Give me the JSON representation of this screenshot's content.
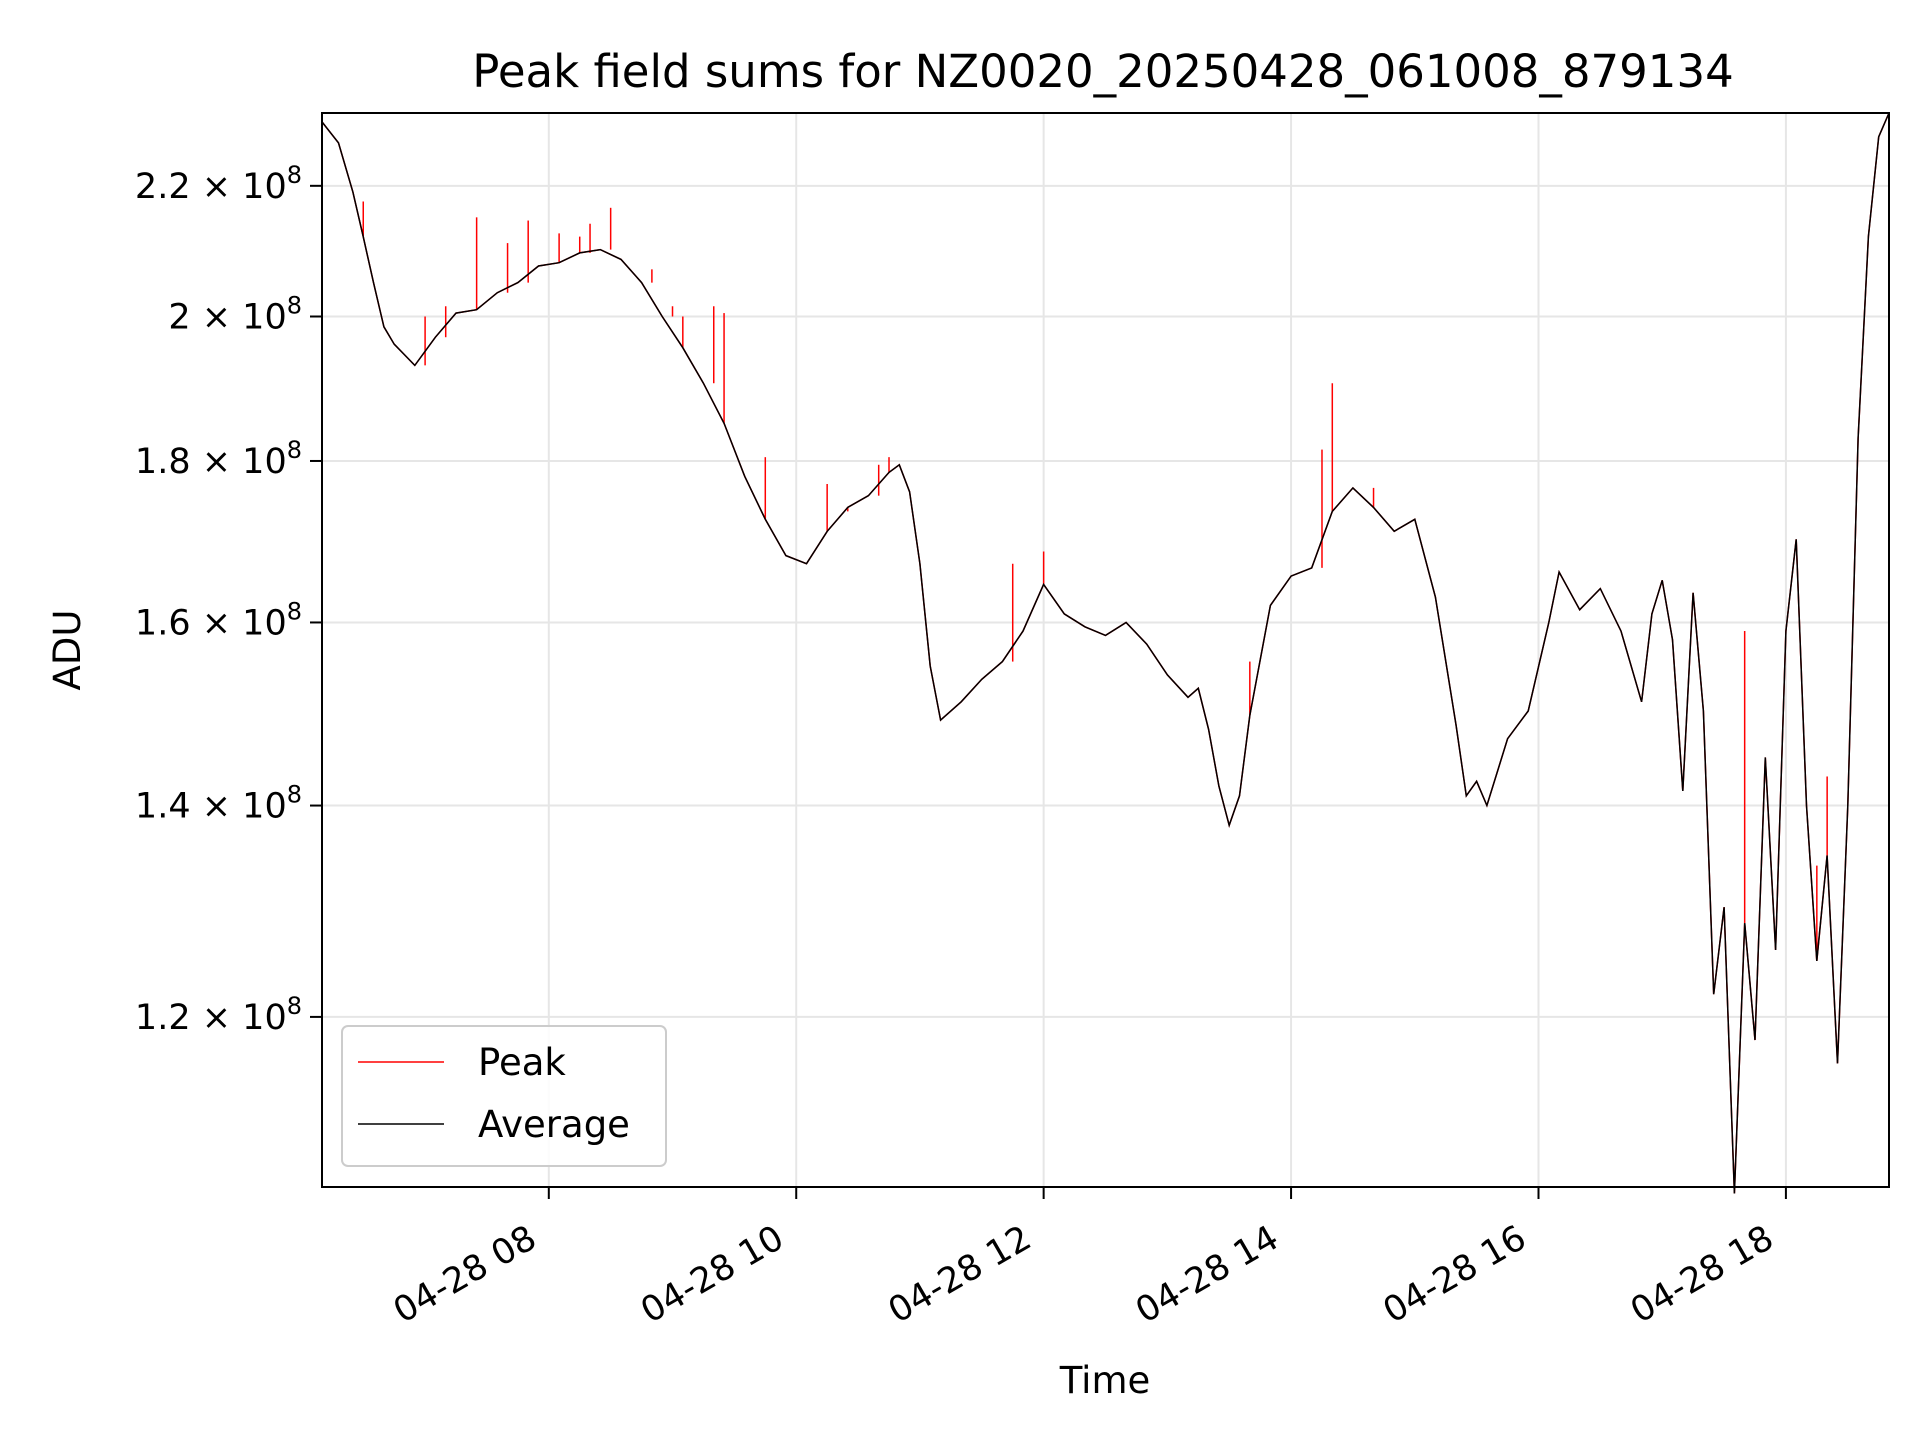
{
  "chart_data": {
    "type": "line",
    "title": "Peak field sums for NZ0020_20250428_061008_879134",
    "xlabel": "Time",
    "ylabel": "ADU",
    "y_scale": "log",
    "xlim": [
      "2025-04-28T06:10",
      "2025-04-28T18:50"
    ],
    "ylim": [
      106000000,
      232000000
    ],
    "grid": true,
    "legend_position": "lower-left",
    "x_ticks": [
      {
        "value": "2025-04-28T08:00",
        "label": "04-28 08"
      },
      {
        "value": "2025-04-28T10:00",
        "label": "04-28 10"
      },
      {
        "value": "2025-04-28T12:00",
        "label": "04-28 12"
      },
      {
        "value": "2025-04-28T14:00",
        "label": "04-28 14"
      },
      {
        "value": "2025-04-28T16:00",
        "label": "04-28 16"
      },
      {
        "value": "2025-04-28T18:00",
        "label": "04-28 18"
      }
    ],
    "y_ticks": [
      {
        "value": 120000000,
        "mantissa": "1.2",
        "base": "10",
        "exponent": "8"
      },
      {
        "value": 140000000,
        "mantissa": "1.4",
        "base": "10",
        "exponent": "8"
      },
      {
        "value": 160000000,
        "mantissa": "1.6",
        "base": "10",
        "exponent": "8"
      },
      {
        "value": 180000000,
        "mantissa": "1.8",
        "base": "10",
        "exponent": "8"
      },
      {
        "value": 200000000,
        "mantissa": "2",
        "base": "10",
        "exponent": "8"
      },
      {
        "value": 220000000,
        "mantissa": "2.2",
        "base": "10",
        "exponent": "8"
      }
    ],
    "series": [
      {
        "name": "Peak",
        "color": "#ff0000",
        "points": [
          [
            "2025-04-28T06:10",
            230500000
          ],
          [
            "2025-04-28T06:18",
            227000000
          ],
          [
            "2025-04-28T06:25",
            219000000
          ],
          [
            "2025-04-28T06:30",
            212000000
          ],
          [
            "2025-04-28T06:35",
            205000000
          ],
          [
            "2025-04-28T06:40",
            198500000
          ],
          [
            "2025-04-28T06:45",
            196000000
          ],
          [
            "2025-04-28T06:55",
            193000000
          ],
          [
            "2025-04-28T07:05",
            197000000
          ],
          [
            "2025-04-28T07:15",
            200500000
          ],
          [
            "2025-04-28T07:25",
            201000000
          ],
          [
            "2025-04-28T07:35",
            203500000
          ],
          [
            "2025-04-28T07:45",
            205000000
          ],
          [
            "2025-04-28T07:55",
            207500000
          ],
          [
            "2025-04-28T08:05",
            208000000
          ],
          [
            "2025-04-28T08:15",
            209500000
          ],
          [
            "2025-04-28T08:25",
            210000000
          ],
          [
            "2025-04-28T08:35",
            208500000
          ],
          [
            "2025-04-28T08:45",
            205000000
          ],
          [
            "2025-04-28T08:55",
            200000000
          ],
          [
            "2025-04-28T09:05",
            195500000
          ],
          [
            "2025-04-28T09:15",
            190500000
          ],
          [
            "2025-04-28T09:25",
            185000000
          ],
          [
            "2025-04-28T09:35",
            178000000
          ],
          [
            "2025-04-28T09:45",
            172500000
          ],
          [
            "2025-04-28T09:55",
            168000000
          ],
          [
            "2025-04-28T10:05",
            167000000
          ],
          [
            "2025-04-28T10:15",
            171000000
          ],
          [
            "2025-04-28T10:25",
            174000000
          ],
          [
            "2025-04-28T10:35",
            175500000
          ],
          [
            "2025-04-28T10:45",
            178500000
          ],
          [
            "2025-04-28T10:50",
            179500000
          ],
          [
            "2025-04-28T10:55",
            176000000
          ],
          [
            "2025-04-28T11:00",
            167000000
          ],
          [
            "2025-04-28T11:05",
            155000000
          ],
          [
            "2025-04-28T11:10",
            149000000
          ],
          [
            "2025-04-28T11:20",
            151000000
          ],
          [
            "2025-04-28T11:30",
            153500000
          ],
          [
            "2025-04-28T11:40",
            155500000
          ],
          [
            "2025-04-28T11:50",
            159000000
          ],
          [
            "2025-04-28T12:00",
            164500000
          ],
          [
            "2025-04-28T12:10",
            161000000
          ],
          [
            "2025-04-28T12:20",
            159500000
          ],
          [
            "2025-04-28T12:30",
            158500000
          ],
          [
            "2025-04-28T12:40",
            160000000
          ],
          [
            "2025-04-28T12:50",
            157500000
          ],
          [
            "2025-04-28T13:00",
            154000000
          ],
          [
            "2025-04-28T13:10",
            151500000
          ],
          [
            "2025-04-28T13:15",
            152500000
          ],
          [
            "2025-04-28T13:20",
            148000000
          ],
          [
            "2025-04-28T13:25",
            142000000
          ],
          [
            "2025-04-28T13:30",
            138000000
          ],
          [
            "2025-04-28T13:35",
            141000000
          ],
          [
            "2025-04-28T13:40",
            149500000
          ],
          [
            "2025-04-28T13:50",
            162000000
          ],
          [
            "2025-04-28T14:00",
            165500000
          ],
          [
            "2025-04-28T14:10",
            166500000
          ],
          [
            "2025-04-28T14:20",
            173500000
          ],
          [
            "2025-04-28T14:30",
            176500000
          ],
          [
            "2025-04-28T14:40",
            174000000
          ],
          [
            "2025-04-28T14:50",
            171000000
          ],
          [
            "2025-04-28T15:00",
            172500000
          ],
          [
            "2025-04-28T15:10",
            163000000
          ],
          [
            "2025-04-28T15:20",
            148500000
          ],
          [
            "2025-04-28T15:25",
            141000000
          ],
          [
            "2025-04-28T15:30",
            142500000
          ],
          [
            "2025-04-28T15:35",
            140000000
          ],
          [
            "2025-04-28T15:45",
            147000000
          ],
          [
            "2025-04-28T15:55",
            150000000
          ],
          [
            "2025-04-28T16:05",
            160000000
          ],
          [
            "2025-04-28T16:10",
            166000000
          ],
          [
            "2025-04-28T16:20",
            161500000
          ],
          [
            "2025-04-28T16:30",
            164000000
          ],
          [
            "2025-04-28T16:40",
            159000000
          ],
          [
            "2025-04-28T16:50",
            151000000
          ],
          [
            "2025-04-28T16:55",
            161000000
          ],
          [
            "2025-04-28T17:00",
            165000000
          ],
          [
            "2025-04-28T17:05",
            158000000
          ],
          [
            "2025-04-28T17:10",
            141500000
          ],
          [
            "2025-04-28T17:15",
            163500000
          ],
          [
            "2025-04-28T17:20",
            150000000
          ],
          [
            "2025-04-28T17:25",
            122000000
          ],
          [
            "2025-04-28T17:30",
            130000000
          ],
          [
            "2025-04-28T17:35",
            105500000
          ],
          [
            "2025-04-28T17:40",
            128500000
          ],
          [
            "2025-04-28T17:45",
            118000000
          ],
          [
            "2025-04-28T17:50",
            145000000
          ],
          [
            "2025-04-28T17:55",
            126000000
          ],
          [
            "2025-04-28T18:00",
            159000000
          ],
          [
            "2025-04-28T18:05",
            170000000
          ],
          [
            "2025-04-28T18:10",
            140000000
          ],
          [
            "2025-04-28T18:15",
            125000000
          ],
          [
            "2025-04-28T18:20",
            135000000
          ],
          [
            "2025-04-28T18:25",
            116000000
          ],
          [
            "2025-04-28T18:30",
            140000000
          ],
          [
            "2025-04-28T18:35",
            183000000
          ],
          [
            "2025-04-28T18:40",
            212000000
          ],
          [
            "2025-04-28T18:45",
            228000000
          ],
          [
            "2025-04-28T18:50",
            232000000
          ]
        ],
        "spikes": [
          [
            "2025-04-28T06:30",
            217500000
          ],
          [
            "2025-04-28T07:00",
            200000000
          ],
          [
            "2025-04-28T07:10",
            201500000
          ],
          [
            "2025-04-28T07:25",
            215000000
          ],
          [
            "2025-04-28T07:40",
            211000000
          ],
          [
            "2025-04-28T07:50",
            214500000
          ],
          [
            "2025-04-28T08:05",
            212500000
          ],
          [
            "2025-04-28T08:15",
            212000000
          ],
          [
            "2025-04-28T08:20",
            214000000
          ],
          [
            "2025-04-28T08:30",
            216500000
          ],
          [
            "2025-04-28T08:50",
            207000000
          ],
          [
            "2025-04-28T09:00",
            201500000
          ],
          [
            "2025-04-28T09:05",
            200000000
          ],
          [
            "2025-04-28T09:20",
            201500000
          ],
          [
            "2025-04-28T09:25",
            200500000
          ],
          [
            "2025-04-28T09:45",
            180500000
          ],
          [
            "2025-04-28T10:15",
            177000000
          ],
          [
            "2025-04-28T10:25",
            173500000
          ],
          [
            "2025-04-28T10:40",
            179500000
          ],
          [
            "2025-04-28T10:45",
            180500000
          ],
          [
            "2025-04-28T11:45",
            167000000
          ],
          [
            "2025-04-28T12:00",
            168500000
          ],
          [
            "2025-04-28T13:40",
            155500000
          ],
          [
            "2025-04-28T14:15",
            181500000
          ],
          [
            "2025-04-28T14:20",
            190500000
          ],
          [
            "2025-04-28T14:40",
            176500000
          ],
          [
            "2025-04-28T17:40",
            159000000
          ],
          [
            "2025-04-28T18:15",
            134000000
          ],
          [
            "2025-04-28T18:20",
            143000000
          ]
        ]
      },
      {
        "name": "Average",
        "color": "#000000",
        "points": [
          [
            "2025-04-28T06:10",
            230500000
          ],
          [
            "2025-04-28T06:18",
            227000000
          ],
          [
            "2025-04-28T06:25",
            219000000
          ],
          [
            "2025-04-28T06:30",
            212000000
          ],
          [
            "2025-04-28T06:35",
            205000000
          ],
          [
            "2025-04-28T06:40",
            198500000
          ],
          [
            "2025-04-28T06:45",
            196000000
          ],
          [
            "2025-04-28T06:55",
            193000000
          ],
          [
            "2025-04-28T07:05",
            197000000
          ],
          [
            "2025-04-28T07:15",
            200500000
          ],
          [
            "2025-04-28T07:25",
            201000000
          ],
          [
            "2025-04-28T07:35",
            203500000
          ],
          [
            "2025-04-28T07:45",
            205000000
          ],
          [
            "2025-04-28T07:55",
            207500000
          ],
          [
            "2025-04-28T08:05",
            208000000
          ],
          [
            "2025-04-28T08:15",
            209500000
          ],
          [
            "2025-04-28T08:25",
            210000000
          ],
          [
            "2025-04-28T08:35",
            208500000
          ],
          [
            "2025-04-28T08:45",
            205000000
          ],
          [
            "2025-04-28T08:55",
            200000000
          ],
          [
            "2025-04-28T09:05",
            195500000
          ],
          [
            "2025-04-28T09:15",
            190500000
          ],
          [
            "2025-04-28T09:25",
            185000000
          ],
          [
            "2025-04-28T09:35",
            178000000
          ],
          [
            "2025-04-28T09:45",
            172500000
          ],
          [
            "2025-04-28T09:55",
            168000000
          ],
          [
            "2025-04-28T10:05",
            167000000
          ],
          [
            "2025-04-28T10:15",
            171000000
          ],
          [
            "2025-04-28T10:25",
            174000000
          ],
          [
            "2025-04-28T10:35",
            175500000
          ],
          [
            "2025-04-28T10:45",
            178500000
          ],
          [
            "2025-04-28T10:50",
            179500000
          ],
          [
            "2025-04-28T10:55",
            176000000
          ],
          [
            "2025-04-28T11:00",
            167000000
          ],
          [
            "2025-04-28T11:05",
            155000000
          ],
          [
            "2025-04-28T11:10",
            149000000
          ],
          [
            "2025-04-28T11:20",
            151000000
          ],
          [
            "2025-04-28T11:30",
            153500000
          ],
          [
            "2025-04-28T11:40",
            155500000
          ],
          [
            "2025-04-28T11:50",
            159000000
          ],
          [
            "2025-04-28T12:00",
            164500000
          ],
          [
            "2025-04-28T12:10",
            161000000
          ],
          [
            "2025-04-28T12:20",
            159500000
          ],
          [
            "2025-04-28T12:30",
            158500000
          ],
          [
            "2025-04-28T12:40",
            160000000
          ],
          [
            "2025-04-28T12:50",
            157500000
          ],
          [
            "2025-04-28T13:00",
            154000000
          ],
          [
            "2025-04-28T13:10",
            151500000
          ],
          [
            "2025-04-28T13:15",
            152500000
          ],
          [
            "2025-04-28T13:20",
            148000000
          ],
          [
            "2025-04-28T13:25",
            142000000
          ],
          [
            "2025-04-28T13:30",
            138000000
          ],
          [
            "2025-04-28T13:35",
            141000000
          ],
          [
            "2025-04-28T13:40",
            149500000
          ],
          [
            "2025-04-28T13:50",
            162000000
          ],
          [
            "2025-04-28T14:00",
            165500000
          ],
          [
            "2025-04-28T14:10",
            166500000
          ],
          [
            "2025-04-28T14:20",
            173500000
          ],
          [
            "2025-04-28T14:30",
            176500000
          ],
          [
            "2025-04-28T14:40",
            174000000
          ],
          [
            "2025-04-28T14:50",
            171000000
          ],
          [
            "2025-04-28T15:00",
            172500000
          ],
          [
            "2025-04-28T15:10",
            163000000
          ],
          [
            "2025-04-28T15:20",
            148500000
          ],
          [
            "2025-04-28T15:25",
            141000000
          ],
          [
            "2025-04-28T15:30",
            142500000
          ],
          [
            "2025-04-28T15:35",
            140000000
          ],
          [
            "2025-04-28T15:45",
            147000000
          ],
          [
            "2025-04-28T15:55",
            150000000
          ],
          [
            "2025-04-28T16:05",
            160000000
          ],
          [
            "2025-04-28T16:10",
            166000000
          ],
          [
            "2025-04-28T16:20",
            161500000
          ],
          [
            "2025-04-28T16:30",
            164000000
          ],
          [
            "2025-04-28T16:40",
            159000000
          ],
          [
            "2025-04-28T16:50",
            151000000
          ],
          [
            "2025-04-28T16:55",
            161000000
          ],
          [
            "2025-04-28T17:00",
            165000000
          ],
          [
            "2025-04-28T17:05",
            158000000
          ],
          [
            "2025-04-28T17:10",
            141500000
          ],
          [
            "2025-04-28T17:15",
            163500000
          ],
          [
            "2025-04-28T17:20",
            150000000
          ],
          [
            "2025-04-28T17:25",
            122000000
          ],
          [
            "2025-04-28T17:30",
            130000000
          ],
          [
            "2025-04-28T17:35",
            105500000
          ],
          [
            "2025-04-28T17:40",
            128500000
          ],
          [
            "2025-04-28T17:45",
            118000000
          ],
          [
            "2025-04-28T17:50",
            145000000
          ],
          [
            "2025-04-28T17:55",
            126000000
          ],
          [
            "2025-04-28T18:00",
            159000000
          ],
          [
            "2025-04-28T18:05",
            170000000
          ],
          [
            "2025-04-28T18:10",
            140000000
          ],
          [
            "2025-04-28T18:15",
            125000000
          ],
          [
            "2025-04-28T18:20",
            135000000
          ],
          [
            "2025-04-28T18:25",
            116000000
          ],
          [
            "2025-04-28T18:30",
            140000000
          ],
          [
            "2025-04-28T18:35",
            183000000
          ],
          [
            "2025-04-28T18:40",
            212000000
          ],
          [
            "2025-04-28T18:45",
            228000000
          ],
          [
            "2025-04-28T18:50",
            232000000
          ]
        ]
      }
    ]
  }
}
